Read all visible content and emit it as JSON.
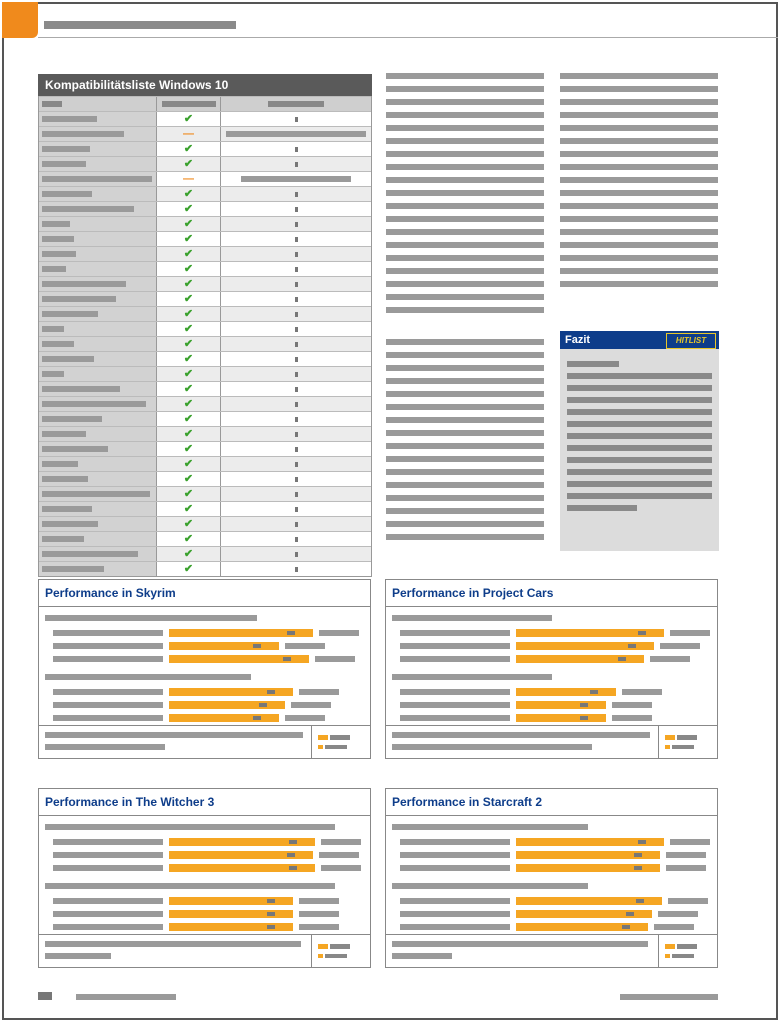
{
  "table": {
    "title": "Kompatibilitätsliste Windows 10",
    "rows": [
      {
        "status": "check",
        "label_w": 55,
        "value": "dot"
      },
      {
        "status": "dash",
        "label_w": 82,
        "value": "bar"
      },
      {
        "status": "check",
        "label_w": 48,
        "value": "dot"
      },
      {
        "status": "check",
        "label_w": 44,
        "value": "dot"
      },
      {
        "status": "dash",
        "label_w": 110,
        "value": "bar"
      },
      {
        "status": "check",
        "label_w": 50,
        "value": "dot"
      },
      {
        "status": "check",
        "label_w": 92,
        "value": "dot"
      },
      {
        "status": "check",
        "label_w": 28,
        "value": "dot"
      },
      {
        "status": "check",
        "label_w": 32,
        "value": "dot"
      },
      {
        "status": "check",
        "label_w": 34,
        "value": "dot"
      },
      {
        "status": "check",
        "label_w": 24,
        "value": "dot"
      },
      {
        "status": "check",
        "label_w": 84,
        "value": "dot"
      },
      {
        "status": "check",
        "label_w": 74,
        "value": "dot"
      },
      {
        "status": "check",
        "label_w": 56,
        "value": "dot"
      },
      {
        "status": "check",
        "label_w": 22,
        "value": "dot"
      },
      {
        "status": "check",
        "label_w": 32,
        "value": "dot"
      },
      {
        "status": "check",
        "label_w": 52,
        "value": "dot"
      },
      {
        "status": "check",
        "label_w": 22,
        "value": "dot"
      },
      {
        "status": "check",
        "label_w": 78,
        "value": "dot"
      },
      {
        "status": "check",
        "label_w": 104,
        "value": "dot"
      },
      {
        "status": "check",
        "label_w": 60,
        "value": "dot"
      },
      {
        "status": "check",
        "label_w": 44,
        "value": "dot"
      },
      {
        "status": "check",
        "label_w": 66,
        "value": "dot"
      },
      {
        "status": "check",
        "label_w": 36,
        "value": "dot"
      },
      {
        "status": "check",
        "label_w": 46,
        "value": "dot"
      },
      {
        "status": "check",
        "label_w": 108,
        "value": "dot"
      },
      {
        "status": "check",
        "label_w": 50,
        "value": "dot"
      },
      {
        "status": "check",
        "label_w": 56,
        "value": "dot"
      },
      {
        "status": "check",
        "label_w": 42,
        "value": "dot"
      },
      {
        "status": "check",
        "label_w": 96,
        "value": "dot"
      },
      {
        "status": "check",
        "label_w": 62,
        "value": "dot"
      }
    ]
  },
  "fazit": {
    "title": "Fazit",
    "logo": "HITLIST"
  },
  "charts": [
    {
      "title": "Performance in Skyrim"
    },
    {
      "title": "Performance in Project Cars"
    },
    {
      "title": "Performance in The Witcher 3"
    },
    {
      "title": "Performance in Starcraft 2"
    }
  ],
  "icons": {
    "check": "check-icon",
    "dash": "dash-icon"
  },
  "colors": {
    "accent": "#f08a1c",
    "bar": "#f5a623",
    "title_blue": "#0e3d8a",
    "check": "#3aa12d"
  }
}
